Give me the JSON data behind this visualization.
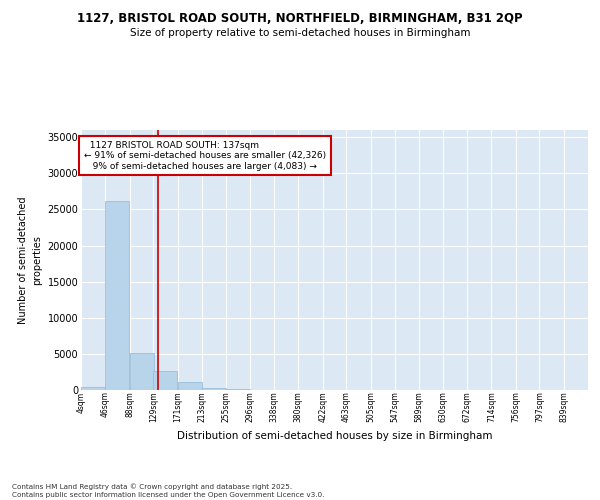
{
  "title_line1": "1127, BRISTOL ROAD SOUTH, NORTHFIELD, BIRMINGHAM, B31 2QP",
  "title_line2": "Size of property relative to semi-detached houses in Birmingham",
  "xlabel": "Distribution of semi-detached houses by size in Birmingham",
  "ylabel": "Number of semi-detached\nproperties",
  "footnote": "Contains HM Land Registry data © Crown copyright and database right 2025.\nContains public sector information licensed under the Open Government Licence v3.0.",
  "property_label": "1127 BRISTOL ROAD SOUTH: 137sqm",
  "pct_smaller": 91,
  "pct_larger": 9,
  "count_smaller": 42326,
  "count_larger": 4083,
  "annotation_box_color": "#cc0000",
  "bar_color": "#b8d4ea",
  "bar_edge_color": "#90b8d8",
  "vline_color": "#cc0000",
  "bg_color": "#dde8f5",
  "categories": [
    "4sqm",
    "46sqm",
    "88sqm",
    "129sqm",
    "171sqm",
    "213sqm",
    "255sqm",
    "296sqm",
    "338sqm",
    "380sqm",
    "422sqm",
    "463sqm",
    "505sqm",
    "547sqm",
    "589sqm",
    "630sqm",
    "672sqm",
    "714sqm",
    "756sqm",
    "797sqm",
    "839sqm"
  ],
  "bin_edges": [
    4,
    46,
    88,
    129,
    171,
    213,
    255,
    296,
    338,
    380,
    422,
    463,
    505,
    547,
    589,
    630,
    672,
    714,
    756,
    797,
    839
  ],
  "bar_heights": [
    400,
    26200,
    5100,
    2700,
    1050,
    320,
    80,
    40,
    20,
    10,
    8,
    5,
    4,
    3,
    2,
    1,
    1,
    1,
    0,
    0,
    0
  ],
  "property_bin_idx": 3,
  "ylim": [
    0,
    36000
  ],
  "yticks": [
    0,
    5000,
    10000,
    15000,
    20000,
    25000,
    30000,
    35000
  ]
}
